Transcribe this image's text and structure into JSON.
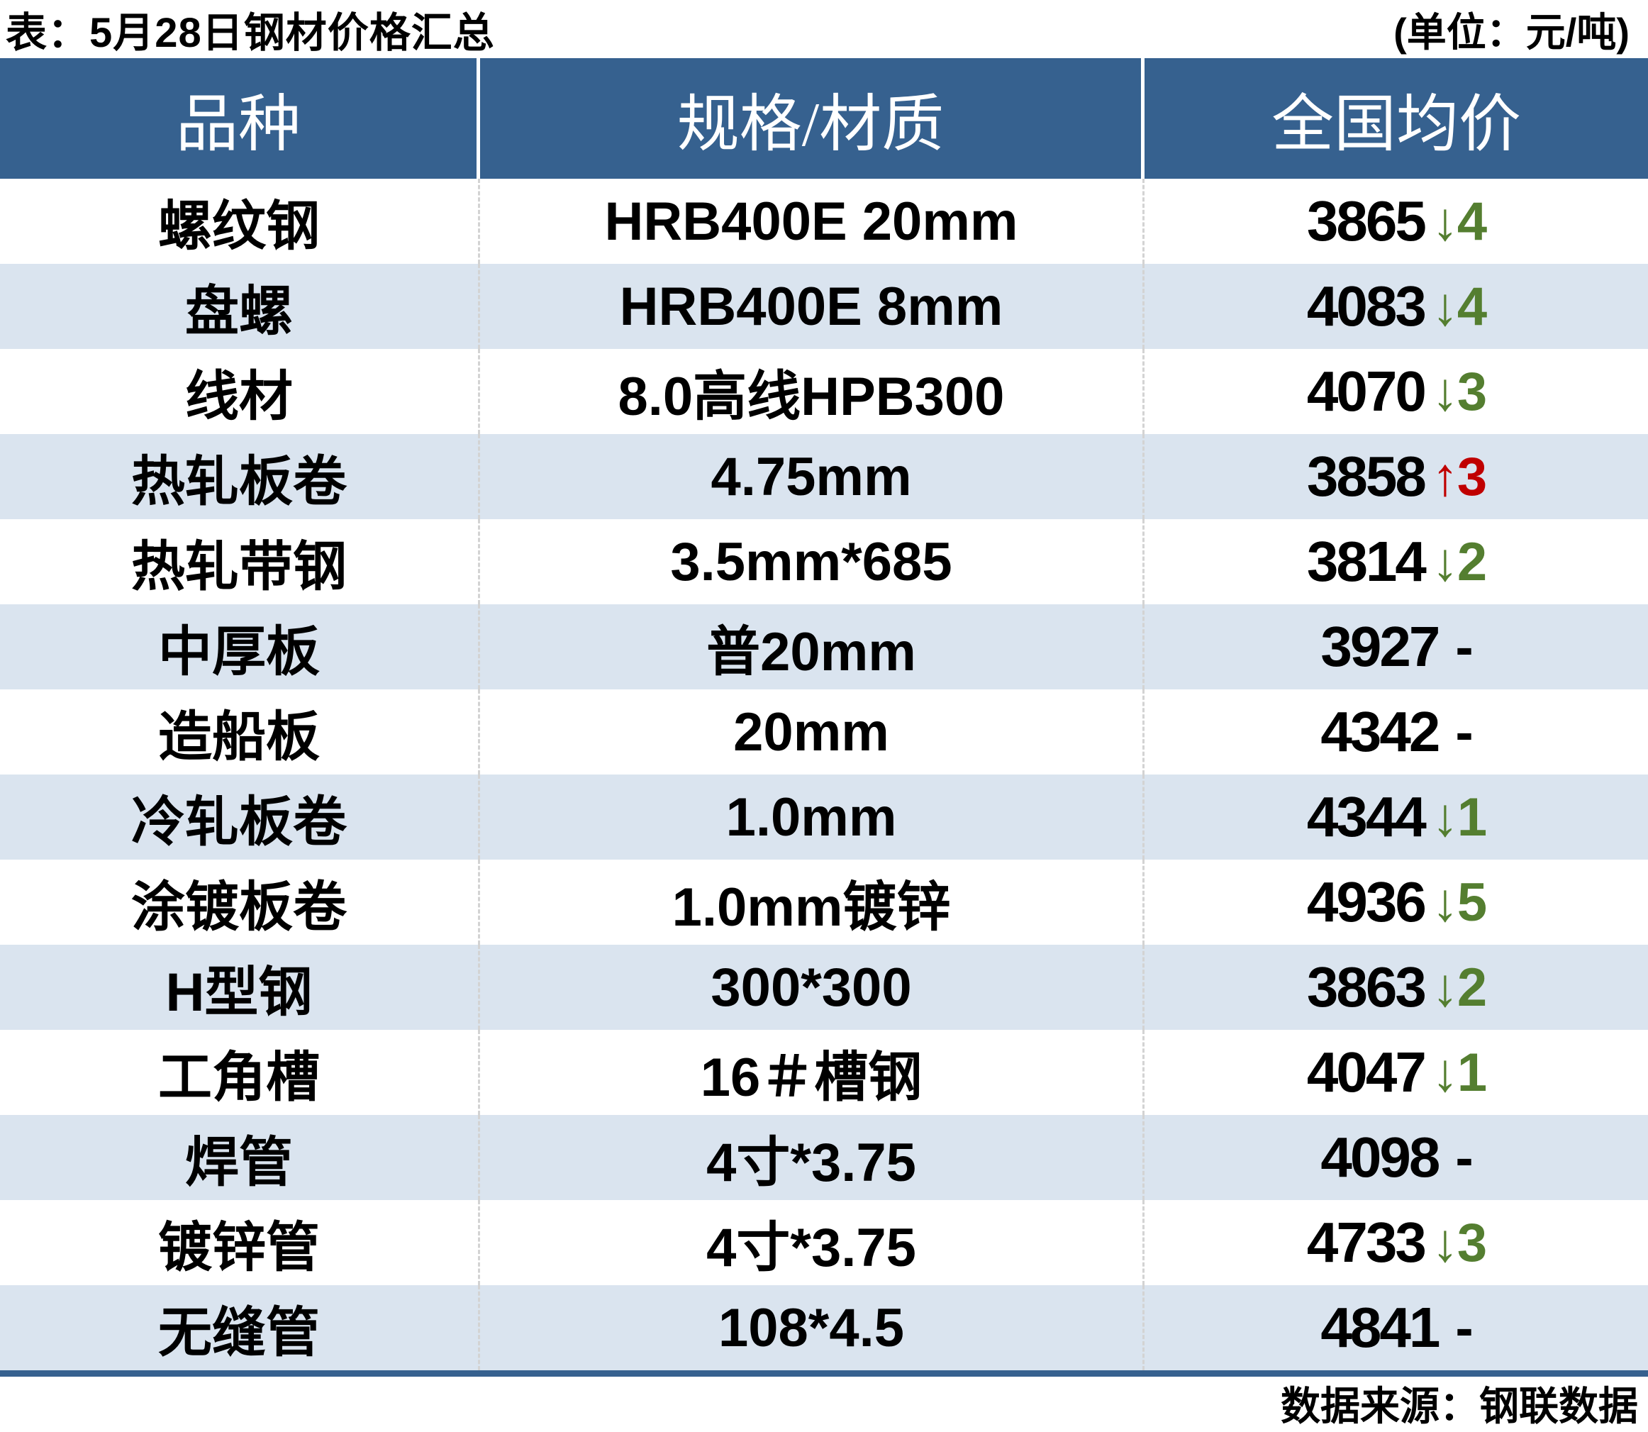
{
  "ui": {
    "title": "表：5月28日钢材价格汇总",
    "unit_label": "(单位：元/吨)",
    "source": "数据来源：钢联数据"
  },
  "chart_data": {
    "type": "table",
    "title": "5月28日钢材价格汇总",
    "unit": "元/吨",
    "columns": [
      "品种",
      "规格/材质",
      "全国均价"
    ],
    "rows": [
      {
        "variety": "螺纹钢",
        "spec": "HRB400E 20mm",
        "price": 3865,
        "change": "↓4",
        "delta": -4,
        "direction": "down"
      },
      {
        "variety": "盘螺",
        "spec": "HRB400E 8mm",
        "price": 4083,
        "change": "↓4",
        "delta": -4,
        "direction": "down"
      },
      {
        "variety": "线材",
        "spec": "8.0高线HPB300",
        "price": 4070,
        "change": "↓3",
        "delta": -3,
        "direction": "down"
      },
      {
        "variety": "热轧板卷",
        "spec": "4.75mm",
        "price": 3858,
        "change": "↑3",
        "delta": 3,
        "direction": "up"
      },
      {
        "variety": "热轧带钢",
        "spec": "3.5mm*685",
        "price": 3814,
        "change": "↓2",
        "delta": -2,
        "direction": "down"
      },
      {
        "variety": "中厚板",
        "spec": "普20mm",
        "price": 3927,
        "change": "-",
        "delta": 0,
        "direction": "flat"
      },
      {
        "variety": "造船板",
        "spec": "20mm",
        "price": 4342,
        "change": "-",
        "delta": 0,
        "direction": "flat"
      },
      {
        "variety": "冷轧板卷",
        "spec": "1.0mm",
        "price": 4344,
        "change": "↓1",
        "delta": -1,
        "direction": "down"
      },
      {
        "variety": "涂镀板卷",
        "spec": "1.0mm镀锌",
        "price": 4936,
        "change": "↓5",
        "delta": -5,
        "direction": "down"
      },
      {
        "variety": "H型钢",
        "spec": "300*300",
        "price": 3863,
        "change": "↓2",
        "delta": -2,
        "direction": "down"
      },
      {
        "variety": "工角槽",
        "spec": "16＃槽钢",
        "price": 4047,
        "change": "↓1",
        "delta": -1,
        "direction": "down"
      },
      {
        "variety": "焊管",
        "spec": "4寸*3.75",
        "price": 4098,
        "change": "-",
        "delta": 0,
        "direction": "flat"
      },
      {
        "variety": "镀锌管",
        "spec": "4寸*3.75",
        "price": 4733,
        "change": "↓3",
        "delta": -3,
        "direction": "down"
      },
      {
        "variety": "无缝管",
        "spec": "108*4.5",
        "price": 4841,
        "change": "-",
        "delta": 0,
        "direction": "flat"
      }
    ],
    "source": "钢联数据",
    "legend_position": "none",
    "grid": "row-stripes"
  },
  "colors": {
    "header_bg": "#36618F",
    "header_text": "#FFFFFF",
    "row_alt_bg": "#DAE4EF",
    "down_green": "#547E30",
    "up_red": "#C00000",
    "divider_gray": "#D3D3D3",
    "bottom_border": "#36618F"
  }
}
